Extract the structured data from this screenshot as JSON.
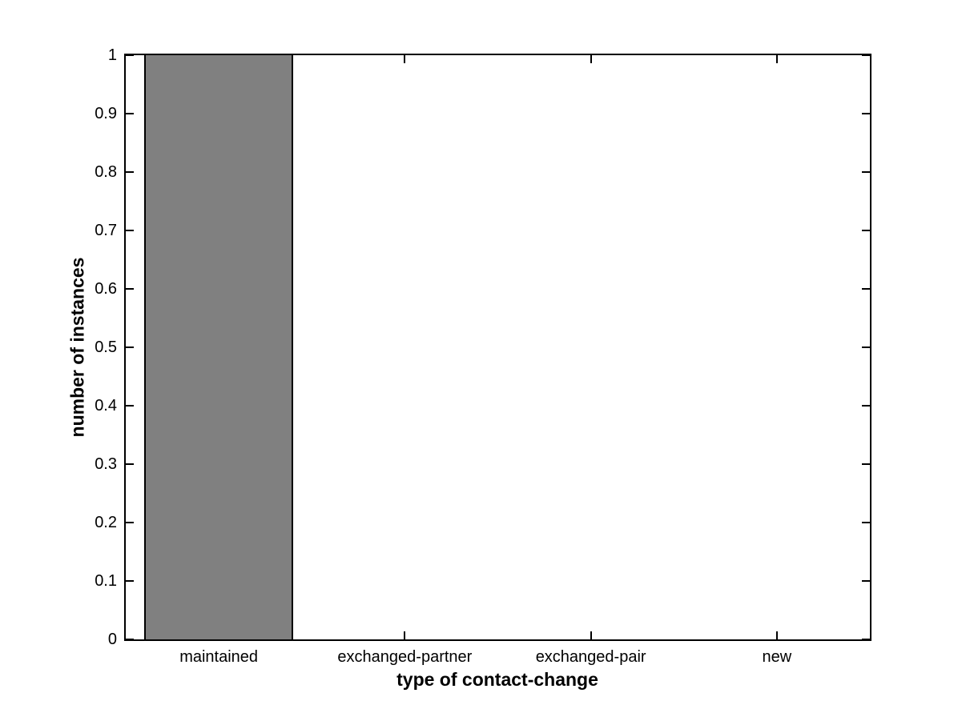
{
  "chart_data": {
    "type": "bar",
    "categories": [
      "maintained",
      "exchanged-partner",
      "exchanged-pair",
      "new"
    ],
    "values": [
      1,
      0,
      0,
      0
    ],
    "title": "",
    "xlabel": "type of contact-change",
    "ylabel": "number of instances",
    "ylim": [
      0,
      1
    ],
    "ytick_labels": [
      "0",
      "0.1",
      "0.2",
      "0.3",
      "0.4",
      "0.5",
      "0.6",
      "0.7",
      "0.8",
      "0.9",
      "1"
    ],
    "bar_width_fraction": 0.8,
    "grid": false,
    "legend": "none",
    "colors": {
      "bar_fill": "#808080",
      "bar_edge": "#000000",
      "axis": "#000000",
      "background": "#ffffff",
      "text": "#000000"
    }
  }
}
